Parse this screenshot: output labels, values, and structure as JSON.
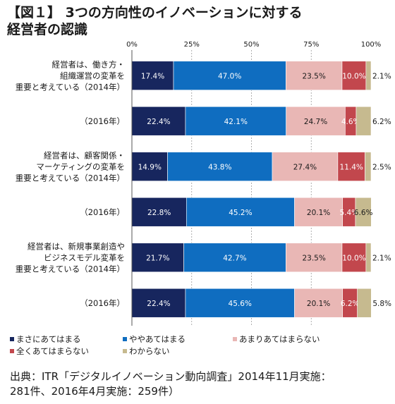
{
  "title": {
    "line1": "【図１】 3つの方向性のイノベーションに対する",
    "line2": "経営者の認識"
  },
  "source": {
    "line1": "出典：ITR「デジタルイノベーション動向調査」2014年11月実施：",
    "line2": "281件、2016年4月実施：259件）"
  },
  "chart_data": {
    "type": "bar",
    "orientation": "horizontal",
    "stacked": "percent",
    "xlim": [
      0,
      100
    ],
    "x_ticks": [
      "0%",
      "25%",
      "50%",
      "75%",
      "100%"
    ],
    "categories": [
      [
        "経営者は、働き方・",
        "組織運営の変革を",
        "重要と考えている（2014年）"
      ],
      [
        "（2016年）"
      ],
      [
        "経営者は、顧客関係・",
        "マーケティングの変革を",
        "重要と考えている（2014年）"
      ],
      [
        "（2016年）"
      ],
      [
        "経営者は、新規事業創造や",
        "ビジネスモデル変革を",
        "重要と考えている（2014年）"
      ],
      [
        "（2016年）"
      ]
    ],
    "series": [
      {
        "name": "まさにあてはまる",
        "color": "#17265e",
        "label_color": "#ffffff",
        "values": [
          17.4,
          22.4,
          14.9,
          22.8,
          21.7,
          22.4
        ]
      },
      {
        "name": "ややあてはまる",
        "color": "#0f6dc0",
        "label_color": "#ffffff",
        "values": [
          47.0,
          42.1,
          43.8,
          45.2,
          42.7,
          45.6
        ]
      },
      {
        "name": "あまりあてはまらない",
        "color": "#e9b7b5",
        "label_color": "#1a1a1a",
        "values": [
          23.5,
          24.7,
          27.4,
          20.1,
          23.5,
          20.1
        ]
      },
      {
        "name": "全くあてはまらない",
        "color": "#c2474d",
        "label_color": "#ffffff",
        "values": [
          10.0,
          4.6,
          11.4,
          5.4,
          10.0,
          6.2
        ]
      },
      {
        "name": "わからない",
        "color": "#c6ba8f",
        "label_color": "#1a1a1a",
        "values": [
          2.1,
          6.2,
          2.5,
          6.6,
          2.1,
          5.8
        ]
      }
    ],
    "value_labels": [
      [
        "17.4%",
        "22.4%",
        "14.9%",
        "22.8%",
        "21.7%",
        "22.4%"
      ],
      [
        "47.0%",
        "42.1%",
        "43.8%",
        "45.2%",
        "42.7%",
        "45.6%"
      ],
      [
        "23.5%",
        "24.7%",
        "27.4%",
        "20.1%",
        "23.5%",
        "20.1%"
      ],
      [
        "10.0%",
        "4.6%",
        "11.4%",
        "5.4%",
        "10.0%",
        "6.2%"
      ],
      [
        "2.1%",
        "6.2%",
        "2.5%",
        "6.6%",
        "2.1%",
        "5.8%"
      ]
    ],
    "legend_position": "bottom",
    "grid": true
  }
}
